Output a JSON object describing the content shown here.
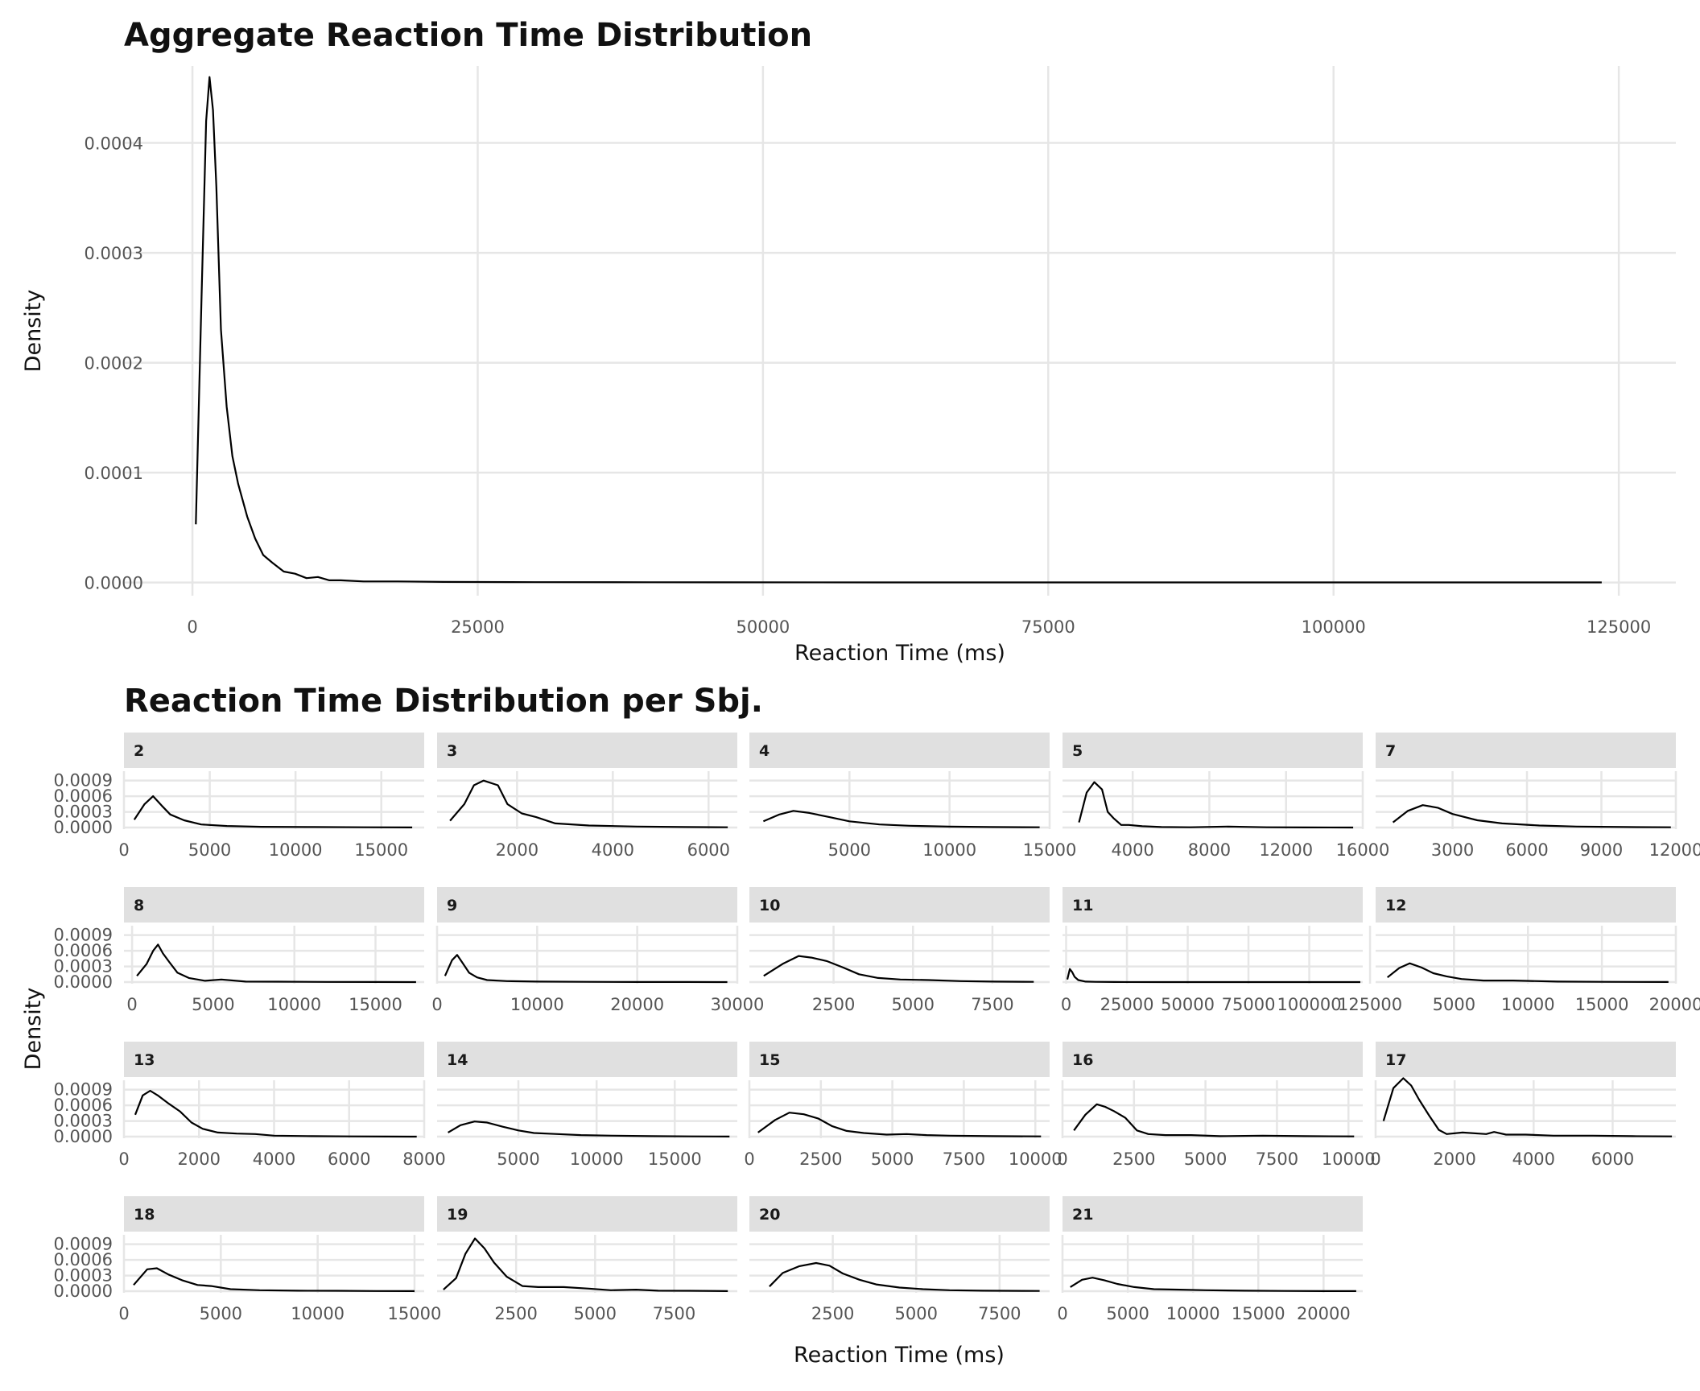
{
  "chart_data": [
    {
      "type": "line",
      "title": "Aggregate Reaction Time Distribution",
      "xlabel": "Reaction Time (ms)",
      "ylabel": "Density",
      "xlim": [
        -6000,
        130000
      ],
      "ylim": [
        -1.2e-05,
        0.00047
      ],
      "xticks": [
        0,
        25000,
        50000,
        75000,
        100000,
        125000
      ],
      "xtick_labels": [
        "0",
        "25000",
        "50000",
        "75000",
        "100000",
        "125000"
      ],
      "yticks": [
        0,
        0.0001,
        0.0002,
        0.0003,
        0.0004
      ],
      "ytick_labels": [
        "0.0000",
        "0.0001",
        "0.0002",
        "0.0003",
        "0.0004"
      ],
      "grid": true,
      "series": [
        {
          "x": [
            300,
            800,
            1200,
            1500,
            1800,
            2100,
            2500,
            3000,
            3500,
            4000,
            4800,
            5500,
            6200,
            7000,
            8000,
            9000,
            10000,
            11000,
            12000,
            13000,
            15000,
            18000,
            22000,
            30000,
            40000,
            60000,
            80000,
            100000,
            123500
          ],
          "y": [
            5.3e-05,
            0.00026,
            0.00042,
            0.00046,
            0.00043,
            0.00036,
            0.00023,
            0.00016,
            0.000115,
            9e-05,
            6e-05,
            4e-05,
            2.5e-05,
            1.8e-05,
            1e-05,
            8e-06,
            4e-06,
            5e-06,
            2e-06,
            2e-06,
            1e-06,
            1e-06,
            5e-07,
            3e-07,
            2e-07,
            1e-07,
            1e-07,
            1e-07,
            1e-07
          ]
        }
      ]
    },
    {
      "type": "line",
      "title": "Reaction Time Distribution per Sbj.",
      "xlabel": "Reaction Time (ms)",
      "ylabel": "Density",
      "shared_y": {
        "ylim": [
          -3e-05,
          0.00108
        ],
        "yticks": [
          0,
          0.0003,
          0.0006,
          0.0009
        ],
        "ytick_labels": [
          "0.0000",
          "0.0003",
          "0.0006",
          "0.0009"
        ]
      },
      "grid": true,
      "panels": [
        {
          "label": "2",
          "xlim": [
            0,
            17500
          ],
          "xticks": [
            0,
            5000,
            10000,
            15000
          ],
          "xtick_labels": [
            "0",
            "5000",
            "10000",
            "15000"
          ],
          "x": [
            600,
            1200,
            1700,
            2200,
            2700,
            3500,
            4500,
            6000,
            8000,
            11000,
            14000,
            16800
          ],
          "y": [
            0.00015,
            0.00045,
            0.0006,
            0.00042,
            0.00025,
            0.00014,
            6e-05,
            3e-05,
            1.5e-05,
            1e-05,
            5e-06,
            2e-06
          ]
        },
        {
          "label": "3",
          "xlim": [
            330,
            6600
          ],
          "xticks": [
            2000,
            4000,
            6000
          ],
          "xtick_labels": [
            "2000",
            "4000",
            "6000"
          ],
          "x": [
            600,
            900,
            1100,
            1300,
            1600,
            1800,
            2100,
            2400,
            2800,
            3500,
            4500,
            5500,
            6400
          ],
          "y": [
            0.00013,
            0.00045,
            0.00081,
            0.0009,
            0.00081,
            0.00045,
            0.00027,
            0.0002,
            8e-05,
            4e-05,
            2e-05,
            1e-05,
            5e-06
          ]
        },
        {
          "label": "4",
          "xlim": [
            0,
            15000
          ],
          "xticks": [
            5000,
            10000,
            15000
          ],
          "xtick_labels": [
            "5000",
            "10000",
            "15000"
          ],
          "x": [
            700,
            1500,
            2200,
            3000,
            4000,
            5000,
            6500,
            8000,
            10000,
            12000,
            14500
          ],
          "y": [
            0.00012,
            0.00025,
            0.00032,
            0.00028,
            0.0002,
            0.00012,
            6e-05,
            3.5e-05,
            1.8e-05,
            1e-05,
            5e-06
          ]
        },
        {
          "label": "5",
          "xlim": [
            340,
            16000
          ],
          "xticks": [
            4000,
            8000,
            12000,
            16000
          ],
          "xtick_labels": [
            "4000",
            "8000",
            "12000",
            "16000"
          ],
          "x": [
            1200,
            1600,
            2000,
            2400,
            2700,
            3000,
            3400,
            3800,
            4500,
            5500,
            7000,
            9000,
            11000,
            13000,
            15500
          ],
          "y": [
            0.0001,
            0.00067,
            0.00087,
            0.00073,
            0.0003,
            0.00018,
            5e-05,
            5e-05,
            2.5e-05,
            1e-05,
            5e-06,
            2e-05,
            5e-06,
            2e-06,
            1e-06
          ]
        },
        {
          "label": "7",
          "xlim": [
            -100,
            12000
          ],
          "xticks": [
            3000,
            6000,
            9000,
            12000
          ],
          "xtick_labels": [
            "3000",
            "6000",
            "9000",
            "12000"
          ],
          "x": [
            600,
            1200,
            1800,
            2400,
            3000,
            4000,
            5000,
            6500,
            8000,
            10000,
            11800
          ],
          "y": [
            0.0001,
            0.00032,
            0.00043,
            0.00038,
            0.00026,
            0.00014,
            8e-05,
            4e-05,
            2e-05,
            1e-05,
            5e-06
          ]
        },
        {
          "label": "8",
          "xlim": [
            -500,
            18000
          ],
          "xticks": [
            0,
            5000,
            10000,
            15000
          ],
          "xtick_labels": [
            "0",
            "5000",
            "10000",
            "15000"
          ],
          "x": [
            300,
            900,
            1300,
            1600,
            1900,
            2300,
            2800,
            3500,
            4500,
            5500,
            7000,
            9000,
            12000,
            15000,
            17500
          ],
          "y": [
            0.00012,
            0.00035,
            0.0006,
            0.00072,
            0.00055,
            0.00038,
            0.00018,
            8e-05,
            2.5e-05,
            5e-05,
            1e-05,
            8e-06,
            4e-06,
            2e-06,
            1e-06
          ]
        },
        {
          "label": "9",
          "xlim": [
            0,
            30000
          ],
          "xticks": [
            0,
            10000,
            20000,
            30000
          ],
          "xtick_labels": [
            "0",
            "10000",
            "20000",
            "30000"
          ],
          "x": [
            800,
            1500,
            2000,
            2500,
            3200,
            4000,
            5000,
            7000,
            10000,
            15000,
            20000,
            25000,
            29000
          ],
          "y": [
            0.00012,
            0.00042,
            0.00052,
            0.00038,
            0.00018,
            9e-05,
            4e-05,
            2e-05,
            1e-05,
            5e-06,
            3e-06,
            2e-06,
            1e-06
          ]
        },
        {
          "label": "10",
          "xlim": [
            -150,
            9300
          ],
          "xticks": [
            2500,
            5000,
            7500
          ],
          "xtick_labels": [
            "2500",
            "5000",
            "7500"
          ],
          "x": [
            300,
            900,
            1400,
            1800,
            2300,
            2800,
            3300,
            3900,
            4600,
            5500,
            6500,
            7500,
            8800
          ],
          "y": [
            0.00012,
            0.00035,
            0.0005,
            0.00047,
            0.0004,
            0.00028,
            0.00015,
            8e-05,
            5e-05,
            4e-05,
            2e-05,
            1e-05,
            5e-06
          ]
        },
        {
          "label": "11",
          "xlim": [
            -1500,
            122000
          ],
          "xticks": [
            0,
            25000,
            50000,
            75000,
            100000,
            125000
          ],
          "xtick_labels": [
            "0",
            "25000",
            "50000",
            "75000",
            "100000",
            "125000"
          ],
          "x": [
            500,
            1500,
            2500,
            3500,
            5000,
            8000,
            12000,
            20000,
            40000,
            70000,
            100000,
            121000
          ],
          "y": [
            5e-05,
            0.00025,
            0.00019,
            0.0001,
            4e-05,
            1e-05,
            5e-06,
            2e-06,
            1e-06,
            5e-07,
            3e-07,
            2e-07
          ]
        },
        {
          "label": "12",
          "xlim": [
            -300,
            20000
          ],
          "xticks": [
            5000,
            10000,
            15000,
            20000
          ],
          "xtick_labels": [
            "5000",
            "10000",
            "15000",
            "20000"
          ],
          "x": [
            500,
            1300,
            2000,
            2800,
            3600,
            4500,
            5500,
            7000,
            9000,
            12000,
            15000,
            19500
          ],
          "y": [
            9e-05,
            0.00027,
            0.00036,
            0.00028,
            0.00017,
            0.00011,
            6e-05,
            3e-05,
            3e-05,
            1e-05,
            5e-06,
            2e-06
          ]
        },
        {
          "label": "13",
          "xlim": [
            0,
            8000
          ],
          "xticks": [
            0,
            2000,
            4000,
            6000,
            8000
          ],
          "xtick_labels": [
            "0",
            "2000",
            "4000",
            "6000",
            "8000"
          ],
          "x": [
            300,
            500,
            700,
            900,
            1200,
            1500,
            1800,
            2100,
            2500,
            3000,
            3500,
            4000,
            5000,
            6000,
            7000,
            7800
          ],
          "y": [
            0.00042,
            0.00079,
            0.00088,
            0.00079,
            0.00063,
            0.00048,
            0.00027,
            0.00015,
            8e-05,
            6e-05,
            5e-05,
            2e-05,
            1e-05,
            5e-06,
            3e-06,
            1e-06
          ]
        },
        {
          "label": "14",
          "xlim": [
            -200,
            19000
          ],
          "xticks": [
            5000,
            10000,
            15000
          ],
          "xtick_labels": [
            "5000",
            "10000",
            "15000"
          ],
          "x": [
            500,
            1300,
            2200,
            3000,
            4000,
            5000,
            6000,
            7500,
            9000,
            11000,
            13500,
            16000,
            18500
          ],
          "y": [
            8e-05,
            0.00022,
            0.00029,
            0.00027,
            0.00019,
            0.00012,
            7e-05,
            5e-05,
            3e-05,
            2e-05,
            1e-05,
            5e-06,
            3e-06
          ]
        },
        {
          "label": "15",
          "xlim": [
            0,
            10500
          ],
          "xticks": [
            0,
            2500,
            5000,
            7500,
            10000
          ],
          "xtick_labels": [
            "0",
            "2500",
            "5000",
            "7500",
            "10000"
          ],
          "x": [
            300,
            900,
            1400,
            1900,
            2400,
            2900,
            3400,
            4000,
            4800,
            5500,
            6200,
            7000,
            8500,
            10200
          ],
          "y": [
            8e-05,
            0.00032,
            0.00046,
            0.00043,
            0.00035,
            0.0002,
            0.00011,
            7e-05,
            4e-05,
            5e-05,
            3e-05,
            2e-05,
            1e-05,
            5e-06
          ]
        },
        {
          "label": "16",
          "xlim": [
            0,
            10500
          ],
          "xticks": [
            0,
            2500,
            5000,
            7500,
            10000
          ],
          "xtick_labels": [
            "0",
            "2500",
            "5000",
            "7500",
            "10000"
          ],
          "x": [
            400,
            800,
            1200,
            1500,
            1800,
            2200,
            2600,
            3000,
            3600,
            4500,
            5500,
            7000,
            8500,
            10200
          ],
          "y": [
            0.00012,
            0.00042,
            0.00062,
            0.00057,
            0.00049,
            0.00036,
            0.00012,
            5e-05,
            3e-05,
            3e-05,
            1e-05,
            2e-05,
            1e-05,
            5e-06
          ]
        },
        {
          "label": "17",
          "xlim": [
            0,
            7600
          ],
          "xticks": [
            0,
            2000,
            4000,
            6000
          ],
          "xtick_labels": [
            "0",
            "2000",
            "4000",
            "6000"
          ],
          "x": [
            200,
            450,
            700,
            900,
            1100,
            1350,
            1600,
            1800,
            2200,
            2800,
            3000,
            3300,
            3800,
            4500,
            5500,
            6500,
            7500
          ],
          "y": [
            0.0003,
            0.00093,
            0.00112,
            0.00098,
            0.00071,
            0.00041,
            0.00013,
            5e-05,
            8e-05,
            5e-05,
            9e-05,
            4e-05,
            4e-05,
            2e-05,
            2e-05,
            1e-05,
            5e-06
          ]
        },
        {
          "label": "18",
          "xlim": [
            0,
            15500
          ],
          "xticks": [
            0,
            5000,
            10000,
            15000
          ],
          "xtick_labels": [
            "0",
            "5000",
            "10000",
            "15000"
          ],
          "x": [
            500,
            1200,
            1700,
            2300,
            3000,
            3800,
            4500,
            5500,
            7000,
            9000,
            11000,
            13000,
            15000
          ],
          "y": [
            0.00012,
            0.00042,
            0.00044,
            0.00032,
            0.00021,
            0.00012,
            0.0001,
            4e-05,
            2e-05,
            1e-05,
            8e-06,
            4e-06,
            2e-06
          ]
        },
        {
          "label": "19",
          "xlim": [
            0,
            9500
          ],
          "xticks": [
            2500,
            5000,
            7500
          ],
          "xtick_labels": [
            "2500",
            "5000",
            "7500"
          ],
          "x": [
            200,
            600,
            900,
            1200,
            1500,
            1800,
            2200,
            2700,
            3200,
            4000,
            4800,
            5500,
            6300,
            7000,
            8000,
            9200
          ],
          "y": [
            3e-05,
            0.00025,
            0.00072,
            0.00101,
            0.00082,
            0.00055,
            0.00028,
            0.0001,
            8e-05,
            8e-05,
            5e-05,
            2e-05,
            3e-05,
            1e-05,
            8e-06,
            3e-06
          ]
        },
        {
          "label": "20",
          "xlim": [
            0,
            9000
          ],
          "xticks": [
            2500,
            5000,
            7500
          ],
          "xtick_labels": [
            "2500",
            "5000",
            "7500"
          ],
          "x": [
            600,
            1000,
            1500,
            2000,
            2400,
            2800,
            3300,
            3800,
            4500,
            5200,
            6000,
            7000,
            8700
          ],
          "y": [
            9e-05,
            0.00035,
            0.00048,
            0.00054,
            0.00049,
            0.00034,
            0.00022,
            0.00013,
            7e-05,
            4e-05,
            2e-05,
            1e-05,
            5e-06
          ]
        },
        {
          "label": "21",
          "xlim": [
            0,
            23000
          ],
          "xticks": [
            0,
            5000,
            10000,
            15000,
            20000
          ],
          "xtick_labels": [
            "0",
            "5000",
            "10000",
            "15000",
            "20000"
          ],
          "x": [
            600,
            1500,
            2300,
            3200,
            4200,
            5500,
            7000,
            9000,
            11000,
            14000,
            17000,
            20000,
            22500
          ],
          "y": [
            8e-05,
            0.00022,
            0.00026,
            0.00021,
            0.00014,
            8e-05,
            4e-05,
            3e-05,
            2e-05,
            1e-05,
            5e-06,
            3e-06,
            2e-06
          ]
        }
      ]
    }
  ]
}
